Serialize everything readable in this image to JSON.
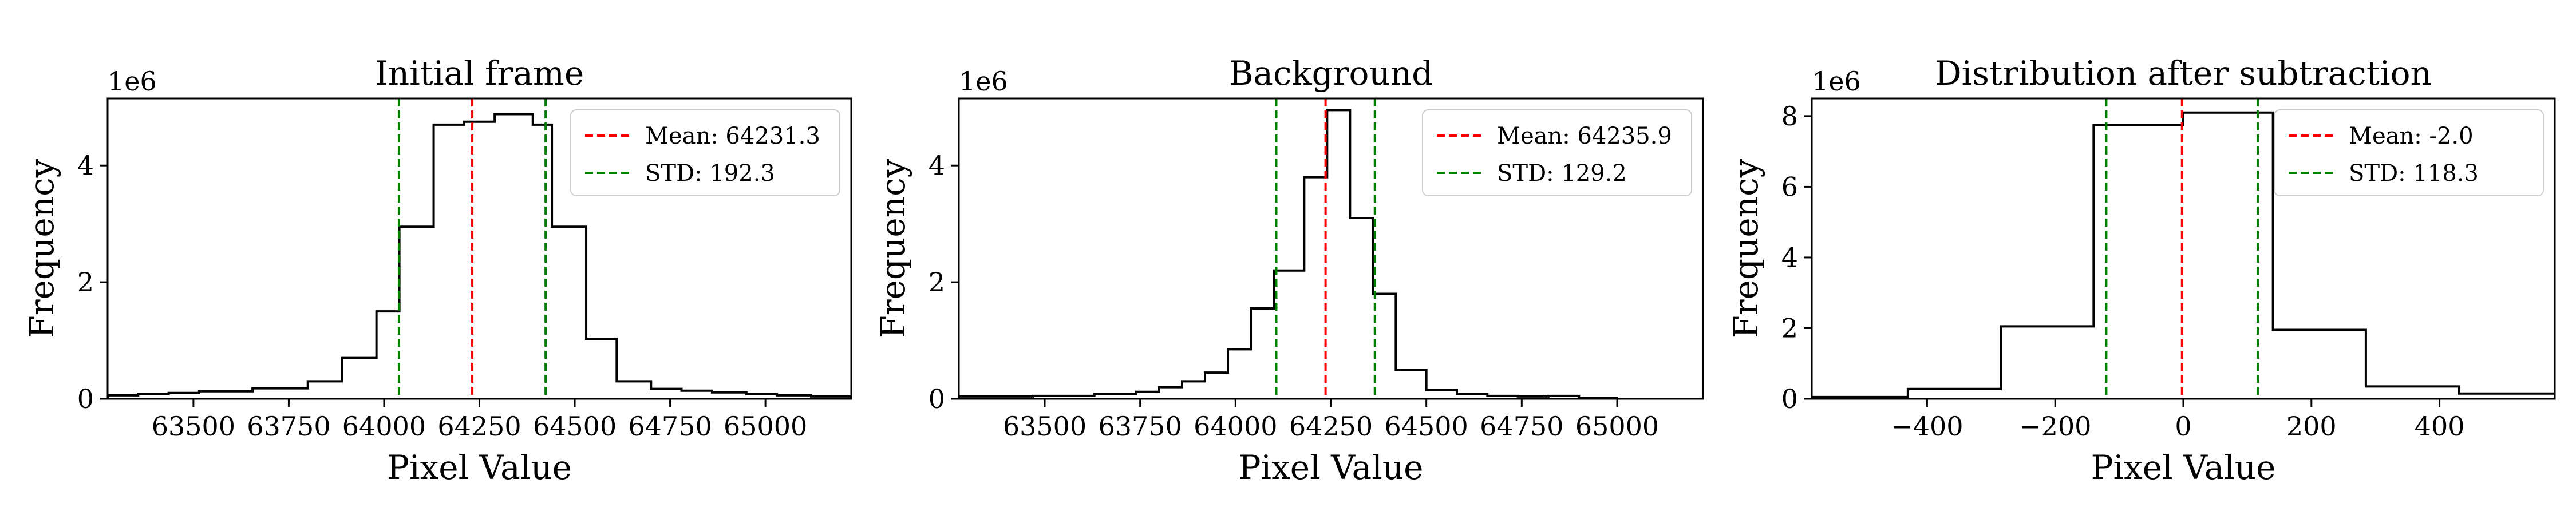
{
  "chart_data": [
    {
      "type": "histogram",
      "title": "Initial frame",
      "xlabel": "Pixel Value",
      "ylabel": "Frequency",
      "y_offset_label": "1e6",
      "xlim": [
        63275,
        65225
      ],
      "ylim": [
        0,
        5150000
      ],
      "xticks": [
        63500,
        63750,
        64000,
        64250,
        64500,
        64750,
        65000
      ],
      "yticks": [
        0,
        2000000,
        4000000
      ],
      "ytick_labels": [
        "0",
        "2",
        "4"
      ],
      "bin_edges": [
        63275,
        63355,
        63435,
        63515,
        63655,
        63800,
        63890,
        63980,
        64040,
        64130,
        64210,
        64290,
        64390,
        64440,
        64530,
        64610,
        64700,
        64780,
        64860,
        64950,
        65030,
        65120,
        65225
      ],
      "counts": [
        60000,
        80000,
        100000,
        130000,
        180000,
        300000,
        700000,
        1500000,
        2950000,
        4700000,
        4750000,
        4880000,
        4700000,
        2950000,
        1030000,
        300000,
        170000,
        140000,
        110000,
        80000,
        60000,
        40000
      ],
      "mean": 64231.3,
      "std": 192.3,
      "legend": [
        {
          "label": "Mean: 64231.3",
          "style": "dashed",
          "color": "#ff0000"
        },
        {
          "label": "STD: 192.3",
          "style": "dashed",
          "color": "#008000"
        }
      ],
      "legend_position": "upper-right"
    },
    {
      "type": "histogram",
      "title": "Background",
      "xlabel": "Pixel Value",
      "ylabel": "Frequency",
      "y_offset_label": "1e6",
      "xlim": [
        63275,
        65225
      ],
      "ylim": [
        0,
        5150000
      ],
      "xticks": [
        63500,
        63750,
        64000,
        64250,
        64500,
        64750,
        65000
      ],
      "yticks": [
        0,
        2000000,
        4000000
      ],
      "ytick_labels": [
        "0",
        "2",
        "4"
      ],
      "bin_edges": [
        63275,
        63470,
        63630,
        63740,
        63800,
        63860,
        63920,
        63980,
        64040,
        64100,
        64180,
        64240,
        64300,
        64360,
        64420,
        64500,
        64580,
        64660,
        64740,
        64820,
        64900,
        65000
      ],
      "counts": [
        40000,
        50000,
        80000,
        120000,
        200000,
        300000,
        450000,
        850000,
        1550000,
        2200000,
        3800000,
        4950000,
        3100000,
        1800000,
        500000,
        150000,
        80000,
        50000,
        40000,
        50000,
        20000
      ],
      "mean": 64235.9,
      "std": 129.2,
      "legend": [
        {
          "label": "Mean: 64235.9",
          "style": "dashed",
          "color": "#ff0000"
        },
        {
          "label": "STD: 129.2",
          "style": "dashed",
          "color": "#008000"
        }
      ],
      "legend_position": "upper-right"
    },
    {
      "type": "histogram",
      "title": "Distribution after subtraction",
      "xlabel": "Pixel Value",
      "ylabel": "Frequency",
      "y_offset_label": "1e6",
      "xlim": [
        -580,
        580
      ],
      "ylim": [
        0,
        8500000
      ],
      "xticks": [
        -400,
        -200,
        0,
        200,
        400
      ],
      "yticks": [
        0,
        2000000,
        4000000,
        6000000,
        8000000
      ],
      "ytick_labels": [
        "0",
        "2",
        "4",
        "6",
        "8"
      ],
      "bin_edges": [
        -580,
        -430,
        -285,
        -140,
        0,
        140,
        285,
        430,
        580
      ],
      "counts": [
        50000,
        280000,
        2050000,
        7750000,
        8100000,
        1950000,
        350000,
        150000
      ],
      "mean": -2.0,
      "std": 118.3,
      "legend": [
        {
          "label": "Mean: -2.0",
          "style": "dashed",
          "color": "#ff0000"
        },
        {
          "label": "STD: 118.3",
          "style": "dashed",
          "color": "#008000"
        }
      ],
      "legend_position": "upper-right"
    }
  ]
}
